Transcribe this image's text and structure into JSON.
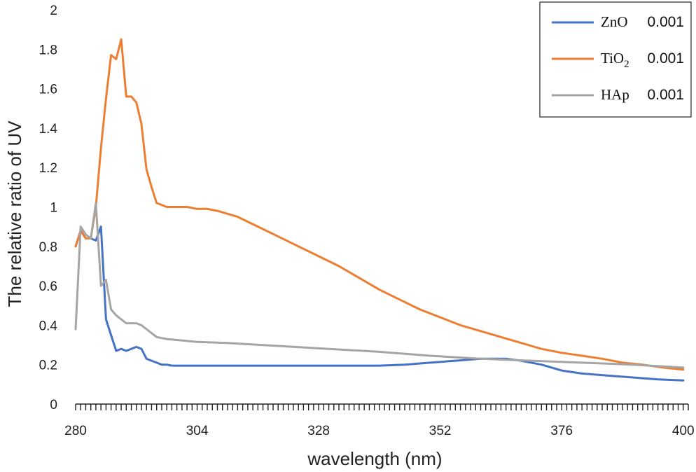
{
  "chart_data": {
    "type": "line",
    "title": "",
    "xlabel": "wavelength (nm)",
    "ylabel": "The relative ratio of UV",
    "xlim": [
      280,
      401
    ],
    "ylim": [
      0,
      2
    ],
    "x_ticks": [
      280,
      304,
      328,
      352,
      376,
      400
    ],
    "x_tick_labels": [
      "280",
      "304",
      "328",
      "352",
      "376",
      "400"
    ],
    "y_ticks": [
      0,
      0.2,
      0.4,
      0.6,
      0.8,
      1,
      1.2,
      1.4,
      1.6,
      1.8,
      2
    ],
    "y_tick_labels": [
      "0",
      "0.2",
      "0.4",
      "0.6",
      "0.8",
      "1",
      "1.2",
      "1.4",
      "1.6",
      "1.8",
      "2"
    ],
    "grid": false,
    "legend_position": "top-right",
    "series": [
      {
        "name": "ZnO",
        "legend_value": "0.001",
        "color": "#4472c4",
        "x": [
          280,
          281,
          282,
          283,
          284,
          285,
          286,
          287,
          288,
          289,
          290,
          291,
          292,
          293,
          294,
          295,
          296,
          297,
          298,
          299,
          300,
          302,
          304,
          308,
          312,
          320,
          330,
          340,
          345,
          350,
          355,
          360,
          365,
          368,
          372,
          376,
          380,
          385,
          390,
          395,
          400
        ],
        "y": [
          0.8,
          0.88,
          0.84,
          0.84,
          0.83,
          0.9,
          0.43,
          0.35,
          0.27,
          0.28,
          0.27,
          0.28,
          0.29,
          0.28,
          0.23,
          0.22,
          0.21,
          0.2,
          0.2,
          0.195,
          0.195,
          0.195,
          0.195,
          0.195,
          0.195,
          0.195,
          0.195,
          0.195,
          0.2,
          0.21,
          0.22,
          0.23,
          0.23,
          0.22,
          0.2,
          0.17,
          0.155,
          0.145,
          0.135,
          0.125,
          0.12
        ]
      },
      {
        "name": "TiO2",
        "legend_value": "0.001",
        "color": "#ed7d31",
        "x": [
          280,
          281,
          282,
          283,
          284,
          285,
          286,
          287,
          288,
          289,
          290,
          291,
          292,
          293,
          294,
          295,
          296,
          297,
          298,
          300,
          302,
          304,
          306,
          308,
          312,
          316,
          320,
          324,
          328,
          332,
          336,
          340,
          344,
          348,
          352,
          356,
          360,
          364,
          368,
          372,
          376,
          380,
          384,
          388,
          392,
          396,
          400
        ],
        "y": [
          0.8,
          0.88,
          0.84,
          0.84,
          1.0,
          1.3,
          1.55,
          1.77,
          1.75,
          1.85,
          1.56,
          1.56,
          1.53,
          1.42,
          1.19,
          1.1,
          1.02,
          1.01,
          1.0,
          1.0,
          1.0,
          0.99,
          0.99,
          0.98,
          0.95,
          0.9,
          0.85,
          0.8,
          0.75,
          0.7,
          0.64,
          0.58,
          0.53,
          0.48,
          0.44,
          0.4,
          0.37,
          0.34,
          0.31,
          0.28,
          0.26,
          0.245,
          0.23,
          0.21,
          0.2,
          0.185,
          0.175
        ]
      },
      {
        "name": "HAp",
        "legend_value": "0.001",
        "color": "#a5a5a5",
        "x": [
          280,
          281,
          282,
          283,
          284,
          285,
          286,
          287,
          288,
          289,
          290,
          291,
          292,
          293,
          294,
          295,
          296,
          298,
          300,
          304,
          310,
          320,
          330,
          340,
          350,
          360,
          370,
          380,
          390,
          400
        ],
        "y": [
          0.38,
          0.9,
          0.86,
          0.84,
          1.02,
          0.6,
          0.63,
          0.48,
          0.45,
          0.43,
          0.41,
          0.41,
          0.41,
          0.4,
          0.38,
          0.36,
          0.34,
          0.33,
          0.325,
          0.315,
          0.31,
          0.295,
          0.28,
          0.265,
          0.245,
          0.23,
          0.22,
          0.21,
          0.2,
          0.185
        ]
      }
    ]
  }
}
